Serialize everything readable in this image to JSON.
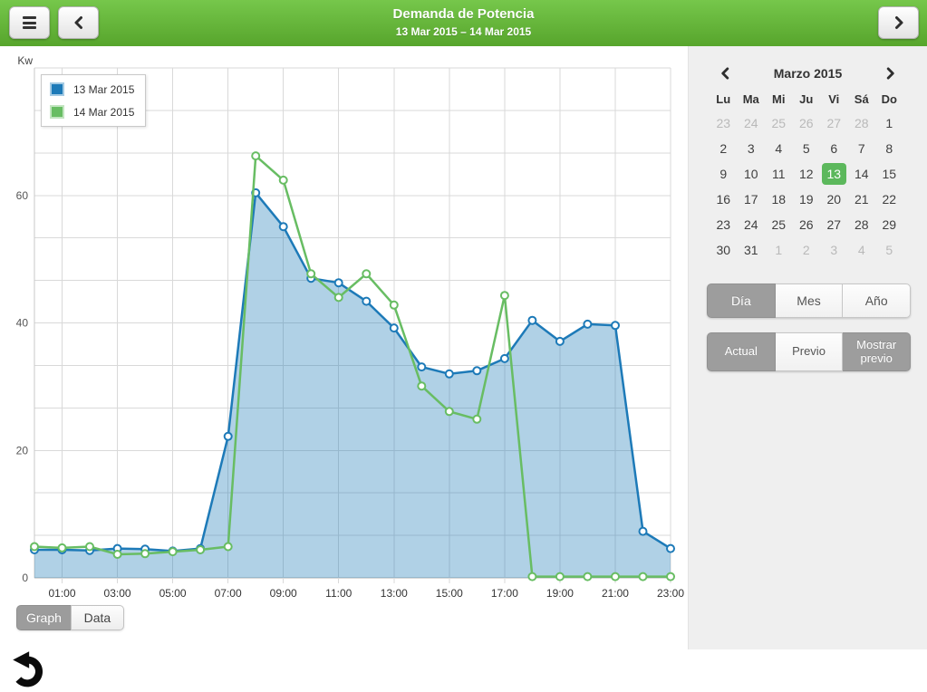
{
  "header": {
    "title": "Demanda de Potencia",
    "subtitle": "13 Mar 2015 – 14 Mar 2015"
  },
  "toolbar": {
    "graph_label": "Graph",
    "data_label": "Data"
  },
  "chart_data": {
    "type": "area",
    "title": "Demanda de Potencia",
    "ylabel": "Kw",
    "ylim": [
      0,
      80
    ],
    "yticks": [
      0,
      20,
      40,
      60
    ],
    "grid": true,
    "legend_position": "top-left",
    "x": [
      "00:00",
      "01:00",
      "02:00",
      "03:00",
      "04:00",
      "05:00",
      "06:00",
      "07:00",
      "08:00",
      "09:00",
      "10:00",
      "11:00",
      "12:00",
      "13:00",
      "14:00",
      "15:00",
      "16:00",
      "17:00",
      "18:00",
      "19:00",
      "20:00",
      "21:00",
      "22:00",
      "23:00"
    ],
    "x_tick_labels": [
      "01:00",
      "03:00",
      "05:00",
      "07:00",
      "09:00",
      "11:00",
      "13:00",
      "15:00",
      "17:00",
      "19:00",
      "21:00",
      "23:00"
    ],
    "series": [
      {
        "name": "13 Mar 2015",
        "color": "#1d7ab8",
        "fill": "rgba(29,122,184,0.35)",
        "values": [
          4.4,
          4.4,
          4.3,
          4.6,
          4.5,
          4.2,
          4.6,
          22.2,
          60.4,
          55.1,
          47.0,
          46.3,
          43.4,
          39.2,
          33.1,
          32.0,
          32.5,
          34.4,
          40.4,
          37.1,
          39.8,
          39.6,
          7.3,
          4.6
        ]
      },
      {
        "name": "14 Mar 2015",
        "color": "#68bd63",
        "fill": "none",
        "values": [
          4.9,
          4.7,
          4.9,
          3.7,
          3.8,
          4.1,
          4.4,
          4.9,
          66.2,
          62.4,
          47.7,
          44.0,
          47.7,
          42.8,
          30.1,
          26.1,
          24.9,
          44.3,
          0.2,
          0.2,
          0.2,
          0.2,
          0.2,
          0.2
        ]
      }
    ]
  },
  "calendar": {
    "title": "Marzo 2015",
    "day_headers": [
      "Lu",
      "Ma",
      "Mi",
      "Ju",
      "Vi",
      "Sá",
      "Do"
    ],
    "selected_day": "13",
    "selected_color": "#5cb85c",
    "weeks": [
      [
        {
          "d": "23",
          "muted": true
        },
        {
          "d": "24",
          "muted": true
        },
        {
          "d": "25",
          "muted": true
        },
        {
          "d": "26",
          "muted": true
        },
        {
          "d": "27",
          "muted": true
        },
        {
          "d": "28",
          "muted": true
        },
        {
          "d": "1",
          "muted": false
        }
      ],
      [
        {
          "d": "2",
          "muted": false
        },
        {
          "d": "3",
          "muted": false
        },
        {
          "d": "4",
          "muted": false
        },
        {
          "d": "5",
          "muted": false
        },
        {
          "d": "6",
          "muted": false
        },
        {
          "d": "7",
          "muted": false
        },
        {
          "d": "8",
          "muted": false
        }
      ],
      [
        {
          "d": "9",
          "muted": false
        },
        {
          "d": "10",
          "muted": false
        },
        {
          "d": "11",
          "muted": false
        },
        {
          "d": "12",
          "muted": false
        },
        {
          "d": "13",
          "muted": false,
          "selected": true
        },
        {
          "d": "14",
          "muted": false
        },
        {
          "d": "15",
          "muted": false
        }
      ],
      [
        {
          "d": "16",
          "muted": false
        },
        {
          "d": "17",
          "muted": false
        },
        {
          "d": "18",
          "muted": false
        },
        {
          "d": "19",
          "muted": false
        },
        {
          "d": "20",
          "muted": false
        },
        {
          "d": "21",
          "muted": false
        },
        {
          "d": "22",
          "muted": false
        }
      ],
      [
        {
          "d": "23",
          "muted": false
        },
        {
          "d": "24",
          "muted": false
        },
        {
          "d": "25",
          "muted": false
        },
        {
          "d": "26",
          "muted": false
        },
        {
          "d": "27",
          "muted": false
        },
        {
          "d": "28",
          "muted": false
        },
        {
          "d": "29",
          "muted": false
        }
      ],
      [
        {
          "d": "30",
          "muted": false
        },
        {
          "d": "31",
          "muted": false
        },
        {
          "d": "1",
          "muted": true
        },
        {
          "d": "2",
          "muted": true
        },
        {
          "d": "3",
          "muted": true
        },
        {
          "d": "4",
          "muted": true
        },
        {
          "d": "5",
          "muted": true
        }
      ]
    ]
  },
  "view_buttons": [
    {
      "label": "Día",
      "active": true
    },
    {
      "label": "Mes",
      "active": false
    },
    {
      "label": "Año",
      "active": false
    }
  ],
  "range_buttons": [
    {
      "label": "Actual",
      "active": true
    },
    {
      "label": "Previo",
      "active": false
    },
    {
      "label": "Mostrar previo",
      "active": true
    }
  ],
  "colors": {
    "header_top": "#76c74b",
    "header_bottom": "#57a52c",
    "accent_green": "#5cb85c",
    "active_gray": "#9d9d9d"
  }
}
